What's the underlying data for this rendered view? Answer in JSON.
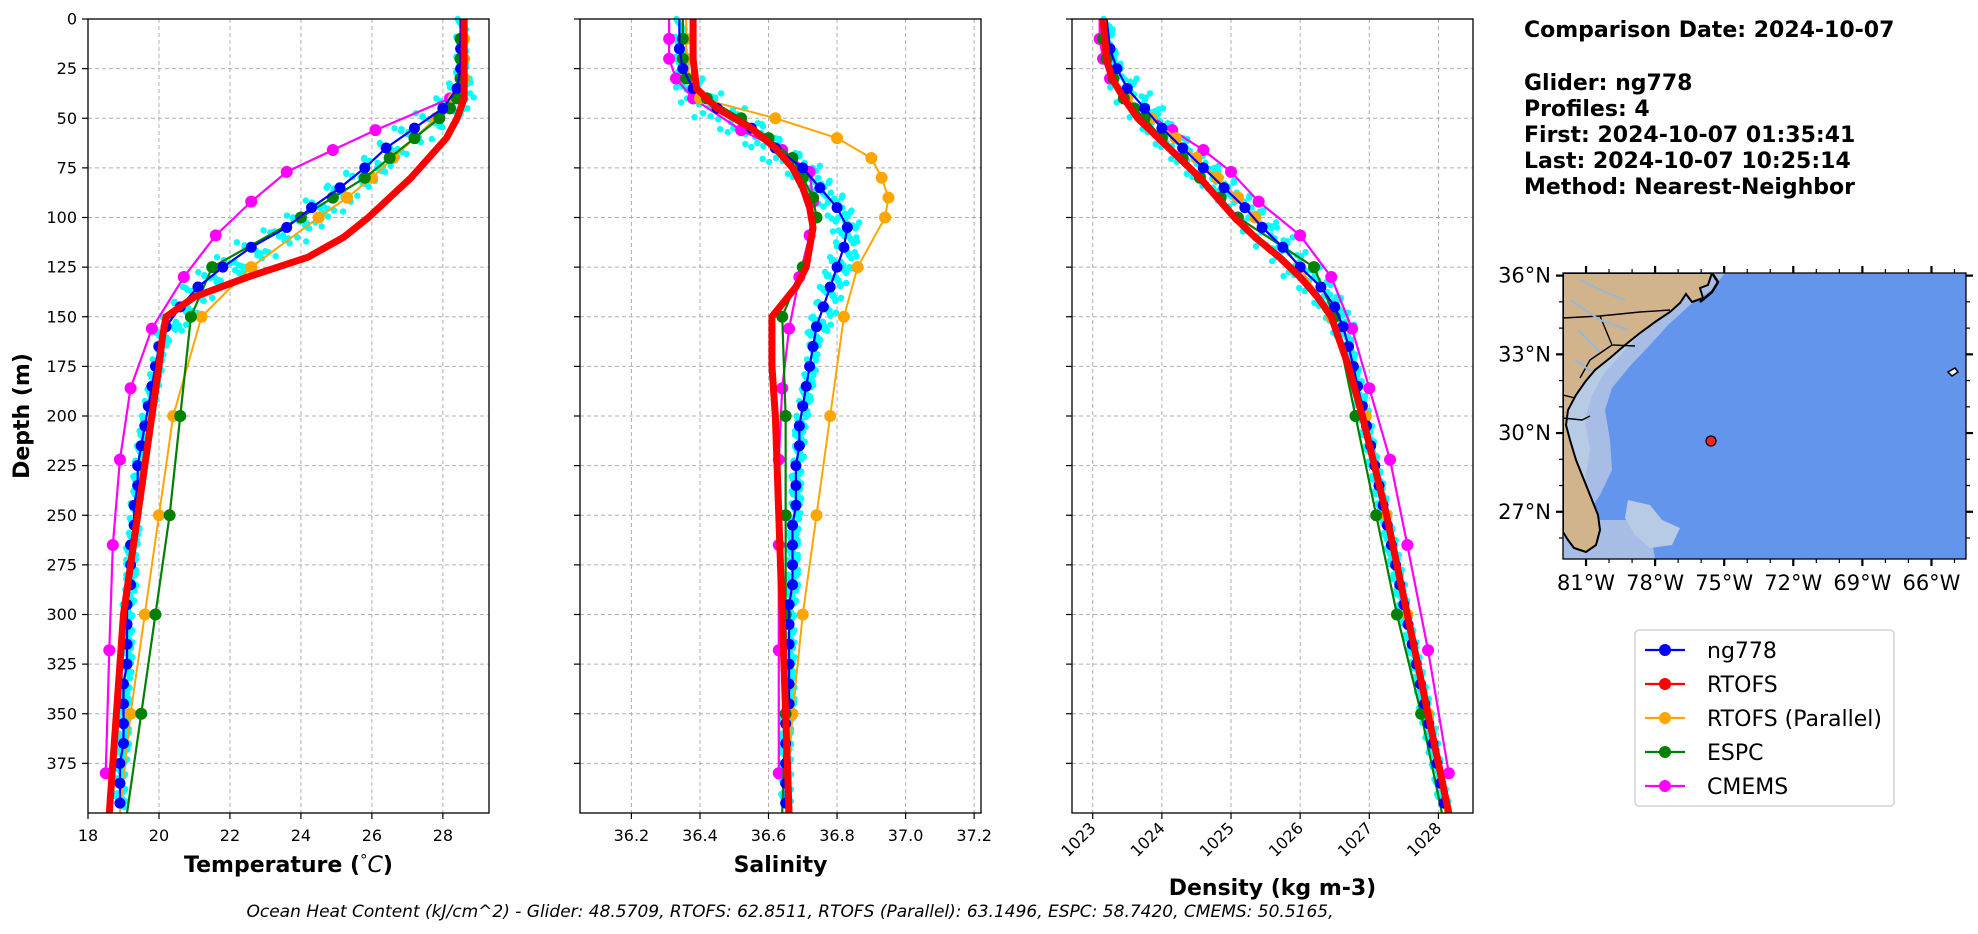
{
  "info": {
    "comparison_date": "Comparison Date: 2024-10-07",
    "glider": "Glider: ng778",
    "profiles": "Profiles: 4",
    "first": "First: 2024-10-07 01:35:41",
    "last": "Last: 2024-10-07 10:25:14",
    "method": "Method: Nearest-Neighbor"
  },
  "footer": "Ocean Heat Content (kJ/cm^2) - Glider: 48.5709,  RTOFS: 62.8511,  RTOFS (Parallel): 63.1496,  ESPC: 58.7420,  CMEMS: 50.5165,",
  "colors": {
    "ng778": "#0000ff",
    "RTOFS": "#ff0000",
    "RTOFS (Parallel)": "#ffa500",
    "ESPC": "#008000",
    "CMEMS": "#ff00ff",
    "glider_points": "#00ffff",
    "grid": "#b0b0b0"
  },
  "legend": [
    "ng778",
    "RTOFS",
    "RTOFS (Parallel)",
    "ESPC",
    "CMEMS"
  ],
  "chart_data": [
    {
      "type": "line",
      "xlabel": "Temperature (°C)",
      "ylabel": "Depth (m)",
      "xlim": [
        18,
        29.3
      ],
      "ylim": [
        400,
        0
      ],
      "xticks": [
        18,
        20,
        22,
        24,
        26,
        28
      ],
      "yticks": [
        0,
        25,
        50,
        75,
        100,
        125,
        150,
        175,
        200,
        225,
        250,
        275,
        300,
        325,
        350,
        375
      ],
      "grid": true,
      "series": [
        {
          "name": "ng778",
          "depth": [
            0,
            15,
            25,
            35,
            45,
            55,
            65,
            75,
            85,
            95,
            105,
            115,
            125,
            135,
            145,
            155,
            165,
            175,
            185,
            195,
            205,
            215,
            225,
            235,
            245,
            255,
            265,
            275,
            285,
            295,
            305,
            315,
            325,
            335,
            345,
            355,
            365,
            375,
            385,
            395
          ],
          "x": [
            28.5,
            28.5,
            28.5,
            28.4,
            28.0,
            27.2,
            26.4,
            25.8,
            25.1,
            24.3,
            23.6,
            22.6,
            21.8,
            21.1,
            20.6,
            20.2,
            20.0,
            19.9,
            19.8,
            19.7,
            19.6,
            19.5,
            19.4,
            19.4,
            19.3,
            19.3,
            19.2,
            19.2,
            19.2,
            19.1,
            19.1,
            19.1,
            19.1,
            19.0,
            19.0,
            19.0,
            19.0,
            18.9,
            18.9,
            18.9
          ]
        },
        {
          "name": "RTOFS",
          "depth": [
            0,
            20,
            30,
            40,
            50,
            60,
            70,
            80,
            90,
            100,
            110,
            120,
            130,
            140,
            150,
            160,
            175,
            200,
            250,
            300,
            350,
            400
          ],
          "x": [
            28.6,
            28.6,
            28.6,
            28.6,
            28.4,
            28.1,
            27.6,
            27.1,
            26.5,
            25.9,
            25.2,
            24.2,
            22.5,
            21.0,
            20.2,
            20.1,
            20.0,
            19.8,
            19.4,
            19.0,
            18.8,
            18.6
          ]
        },
        {
          "name": "RTOFS (Parallel)",
          "depth": [
            0,
            10,
            20,
            30,
            40,
            50,
            60,
            70,
            80,
            90,
            100,
            125,
            150,
            200,
            250,
            300,
            350,
            400
          ],
          "x": [
            28.6,
            28.6,
            28.6,
            28.6,
            28.3,
            27.8,
            27.2,
            26.6,
            26.0,
            25.3,
            24.5,
            22.6,
            21.2,
            20.4,
            20.0,
            19.6,
            19.2,
            18.9
          ]
        },
        {
          "name": "ESPC",
          "depth": [
            0,
            10,
            20,
            30,
            40,
            45,
            50,
            60,
            70,
            80,
            90,
            100,
            125,
            150,
            200,
            250,
            300,
            350,
            400
          ],
          "x": [
            28.5,
            28.5,
            28.5,
            28.5,
            28.4,
            28.2,
            27.9,
            27.2,
            26.5,
            25.8,
            24.9,
            24.0,
            21.5,
            20.9,
            20.6,
            20.3,
            19.9,
            19.5,
            19.1
          ]
        },
        {
          "name": "CMEMS",
          "depth": [
            0,
            10,
            20,
            30,
            40,
            56,
            66,
            77,
            92,
            109,
            130,
            156,
            186,
            222,
            265,
            318,
            380
          ],
          "x": [
            28.5,
            28.5,
            28.5,
            28.5,
            28.2,
            26.1,
            24.9,
            23.6,
            22.6,
            21.6,
            20.7,
            19.8,
            19.2,
            18.9,
            18.7,
            18.6,
            18.5
          ]
        }
      ]
    },
    {
      "type": "line",
      "xlabel": "Salinity",
      "xlim": [
        36.05,
        37.22
      ],
      "ylim": [
        400,
        0
      ],
      "xticks": [
        36.2,
        36.4,
        36.6,
        36.8,
        37.0,
        37.2
      ],
      "grid": true,
      "series": [
        {
          "name": "ng778",
          "depth": [
            0,
            15,
            25,
            35,
            45,
            55,
            65,
            75,
            85,
            95,
            105,
            115,
            125,
            135,
            145,
            155,
            165,
            175,
            185,
            195,
            205,
            215,
            225,
            235,
            245,
            255,
            265,
            275,
            285,
            295,
            305,
            315,
            325,
            335,
            345,
            355,
            365,
            375,
            385,
            395
          ],
          "x": [
            36.34,
            36.34,
            36.35,
            36.38,
            36.45,
            36.55,
            36.62,
            36.7,
            36.75,
            36.8,
            36.83,
            36.82,
            36.8,
            36.78,
            36.76,
            36.74,
            36.73,
            36.72,
            36.71,
            36.7,
            36.69,
            36.69,
            36.68,
            36.68,
            36.68,
            36.67,
            36.67,
            36.67,
            36.67,
            36.66,
            36.66,
            36.66,
            36.66,
            36.66,
            36.66,
            36.65,
            36.65,
            36.65,
            36.65,
            36.65
          ]
        },
        {
          "name": "RTOFS",
          "depth": [
            0,
            20,
            35,
            45,
            55,
            65,
            75,
            85,
            95,
            105,
            115,
            125,
            135,
            150,
            175,
            200,
            250,
            300,
            350,
            400
          ],
          "x": [
            36.38,
            36.38,
            36.39,
            36.45,
            36.55,
            36.62,
            36.67,
            36.7,
            36.72,
            36.73,
            36.72,
            36.71,
            36.68,
            36.61,
            36.61,
            36.62,
            36.63,
            36.64,
            36.65,
            36.66
          ]
        },
        {
          "name": "RTOFS (Parallel)",
          "depth": [
            0,
            10,
            20,
            30,
            40,
            50,
            60,
            70,
            80,
            90,
            100,
            125,
            150,
            200,
            250,
            300,
            350,
            400
          ],
          "x": [
            36.36,
            36.36,
            36.36,
            36.37,
            36.4,
            36.62,
            36.8,
            36.9,
            36.93,
            36.95,
            36.94,
            36.86,
            36.82,
            36.78,
            36.74,
            36.7,
            36.67,
            36.65
          ]
        },
        {
          "name": "ESPC",
          "depth": [
            0,
            10,
            20,
            30,
            40,
            50,
            60,
            70,
            80,
            90,
            100,
            125,
            150,
            200,
            250,
            300,
            350,
            400
          ],
          "x": [
            36.35,
            36.35,
            36.35,
            36.36,
            36.42,
            36.52,
            36.6,
            36.67,
            36.7,
            36.73,
            36.74,
            36.7,
            36.64,
            36.65,
            36.65,
            36.65,
            36.65,
            36.64
          ]
        },
        {
          "name": "CMEMS",
          "depth": [
            0,
            10,
            20,
            30,
            40,
            56,
            66,
            77,
            92,
            109,
            130,
            156,
            186,
            222,
            265,
            318,
            380
          ],
          "x": [
            36.31,
            36.31,
            36.31,
            36.33,
            36.38,
            36.52,
            36.64,
            36.72,
            36.73,
            36.72,
            36.69,
            36.66,
            36.64,
            36.63,
            36.63,
            36.63,
            36.63
          ]
        }
      ]
    },
    {
      "type": "line",
      "xlabel": "Density (kg m-3)",
      "xlim": [
        1022.7,
        1028.5
      ],
      "ylim": [
        400,
        0
      ],
      "xticks": [
        1023,
        1024,
        1025,
        1026,
        1027,
        1028
      ],
      "grid": true,
      "series": [
        {
          "name": "ng778",
          "depth": [
            0,
            15,
            25,
            35,
            45,
            55,
            65,
            75,
            85,
            95,
            105,
            115,
            125,
            135,
            145,
            155,
            165,
            175,
            185,
            195,
            205,
            215,
            225,
            235,
            245,
            255,
            265,
            275,
            285,
            295,
            305,
            315,
            325,
            335,
            345,
            355,
            365,
            375,
            385,
            395
          ],
          "x": [
            1023.2,
            1023.25,
            1023.35,
            1023.5,
            1023.75,
            1024.0,
            1024.3,
            1024.6,
            1024.9,
            1025.2,
            1025.45,
            1025.75,
            1026.0,
            1026.3,
            1026.5,
            1026.62,
            1026.7,
            1026.77,
            1026.83,
            1026.9,
            1026.96,
            1027.02,
            1027.08,
            1027.14,
            1027.2,
            1027.26,
            1027.32,
            1027.38,
            1027.44,
            1027.5,
            1027.56,
            1027.62,
            1027.68,
            1027.74,
            1027.8,
            1027.86,
            1027.92,
            1027.98,
            1028.03,
            1028.08
          ]
        },
        {
          "name": "RTOFS",
          "depth": [
            0,
            20,
            30,
            40,
            50,
            60,
            70,
            80,
            90,
            100,
            110,
            120,
            130,
            140,
            150,
            175,
            200,
            250,
            300,
            350,
            400
          ],
          "x": [
            1023.15,
            1023.2,
            1023.28,
            1023.45,
            1023.65,
            1023.95,
            1024.25,
            1024.55,
            1024.8,
            1025.05,
            1025.35,
            1025.7,
            1026.0,
            1026.25,
            1026.45,
            1026.7,
            1026.9,
            1027.25,
            1027.55,
            1027.85,
            1028.15
          ]
        },
        {
          "name": "RTOFS (Parallel)",
          "depth": [
            0,
            10,
            20,
            30,
            40,
            50,
            60,
            70,
            80,
            90,
            100,
            125,
            150,
            200,
            250,
            300,
            350,
            400
          ],
          "x": [
            1023.15,
            1023.15,
            1023.2,
            1023.3,
            1023.5,
            1023.85,
            1024.2,
            1024.5,
            1024.8,
            1025.1,
            1025.35,
            1026.0,
            1026.45,
            1026.95,
            1027.25,
            1027.55,
            1027.85,
            1028.1
          ]
        },
        {
          "name": "ESPC",
          "depth": [
            0,
            10,
            20,
            30,
            40,
            45,
            50,
            60,
            70,
            80,
            90,
            100,
            125,
            150,
            200,
            250,
            300,
            350,
            400
          ],
          "x": [
            1023.15,
            1023.15,
            1023.2,
            1023.3,
            1023.45,
            1023.6,
            1023.75,
            1024.0,
            1024.3,
            1024.55,
            1024.85,
            1025.1,
            1026.2,
            1026.5,
            1026.8,
            1027.1,
            1027.4,
            1027.75,
            1028.05
          ]
        },
        {
          "name": "CMEMS",
          "depth": [
            0,
            10,
            20,
            30,
            40,
            56,
            66,
            77,
            92,
            109,
            130,
            156,
            186,
            222,
            265,
            318,
            380
          ],
          "x": [
            1023.1,
            1023.1,
            1023.15,
            1023.25,
            1023.45,
            1024.15,
            1024.6,
            1025.0,
            1025.4,
            1026.0,
            1026.45,
            1026.75,
            1027.0,
            1027.3,
            1027.55,
            1027.85,
            1028.15
          ]
        }
      ]
    }
  ],
  "map": {
    "lat_labels": [
      "36°N",
      "33°N",
      "30°N",
      "27°N"
    ],
    "lon_labels": [
      "81°W",
      "78°W",
      "75°W",
      "72°W",
      "69°W",
      "66°W"
    ],
    "lat_ticks": [
      36,
      33,
      30,
      27
    ],
    "lon_ticks": [
      -81,
      -78,
      -75,
      -72,
      -69,
      -66
    ],
    "extent": {
      "lon_min": -82,
      "lon_max": -64.5,
      "lat_min": 25.2,
      "lat_max": 36.1
    },
    "glider_position": {
      "lon": -75.5,
      "lat": 29.8
    },
    "land_color": "#d2b48c",
    "ocean_color": "#6495ed",
    "shelf_color": "#b0c4de"
  }
}
